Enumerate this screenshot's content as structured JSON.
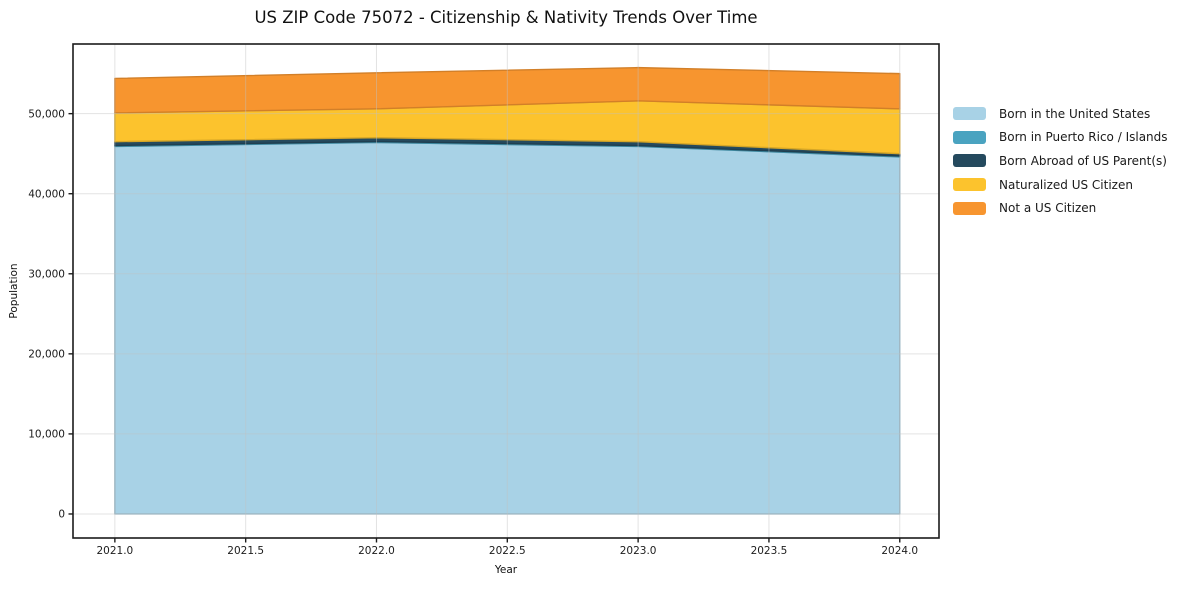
{
  "chart_data": {
    "type": "area",
    "stacked": true,
    "title": "US ZIP Code 75072 - Citizenship & Nativity Trends Over Time",
    "xlabel": "Year",
    "ylabel": "Population",
    "x": [
      2021,
      2022,
      2023,
      2024
    ],
    "series": [
      {
        "name": "Born in the United States",
        "color": "#a8d2e6",
        "values": [
          45900,
          46400,
          45900,
          44600
        ]
      },
      {
        "name": "Born in Puerto Rico / Islands",
        "color": "#4aa3c0",
        "values": [
          120,
          120,
          120,
          120
        ]
      },
      {
        "name": "Born Abroad of US Parent(s)",
        "color": "#254a5e",
        "values": [
          480,
          480,
          480,
          280
        ]
      },
      {
        "name": "Naturalized US Citizen",
        "color": "#fcc32d",
        "values": [
          3600,
          3600,
          5100,
          5600
        ]
      },
      {
        "name": "Not a US Citizen",
        "color": "#f7952f",
        "values": [
          4300,
          4500,
          4150,
          4400
        ]
      }
    ],
    "xlim": [
      2020.84,
      2024.15
    ],
    "ylim": [
      -3000,
      58700
    ],
    "xticks": {
      "values": [
        2021.0,
        2021.5,
        2022.0,
        2022.5,
        2023.0,
        2023.5,
        2024.0
      ],
      "labels": [
        "2021.0",
        "2021.5",
        "2022.0",
        "2022.5",
        "2023.0",
        "2023.5",
        "2024.0"
      ]
    },
    "yticks": {
      "values": [
        0,
        10000,
        20000,
        30000,
        40000,
        50000
      ],
      "labels": [
        "0",
        "10,000",
        "20,000",
        "30,000",
        "40,000",
        "50,000"
      ]
    },
    "grid": true,
    "legend_position": "right",
    "axis_colors": {
      "frame": "#1b1b1b",
      "grid": "#c0c0c0",
      "tick_text": "#1c1c1c",
      "background": "#ffffff"
    }
  }
}
